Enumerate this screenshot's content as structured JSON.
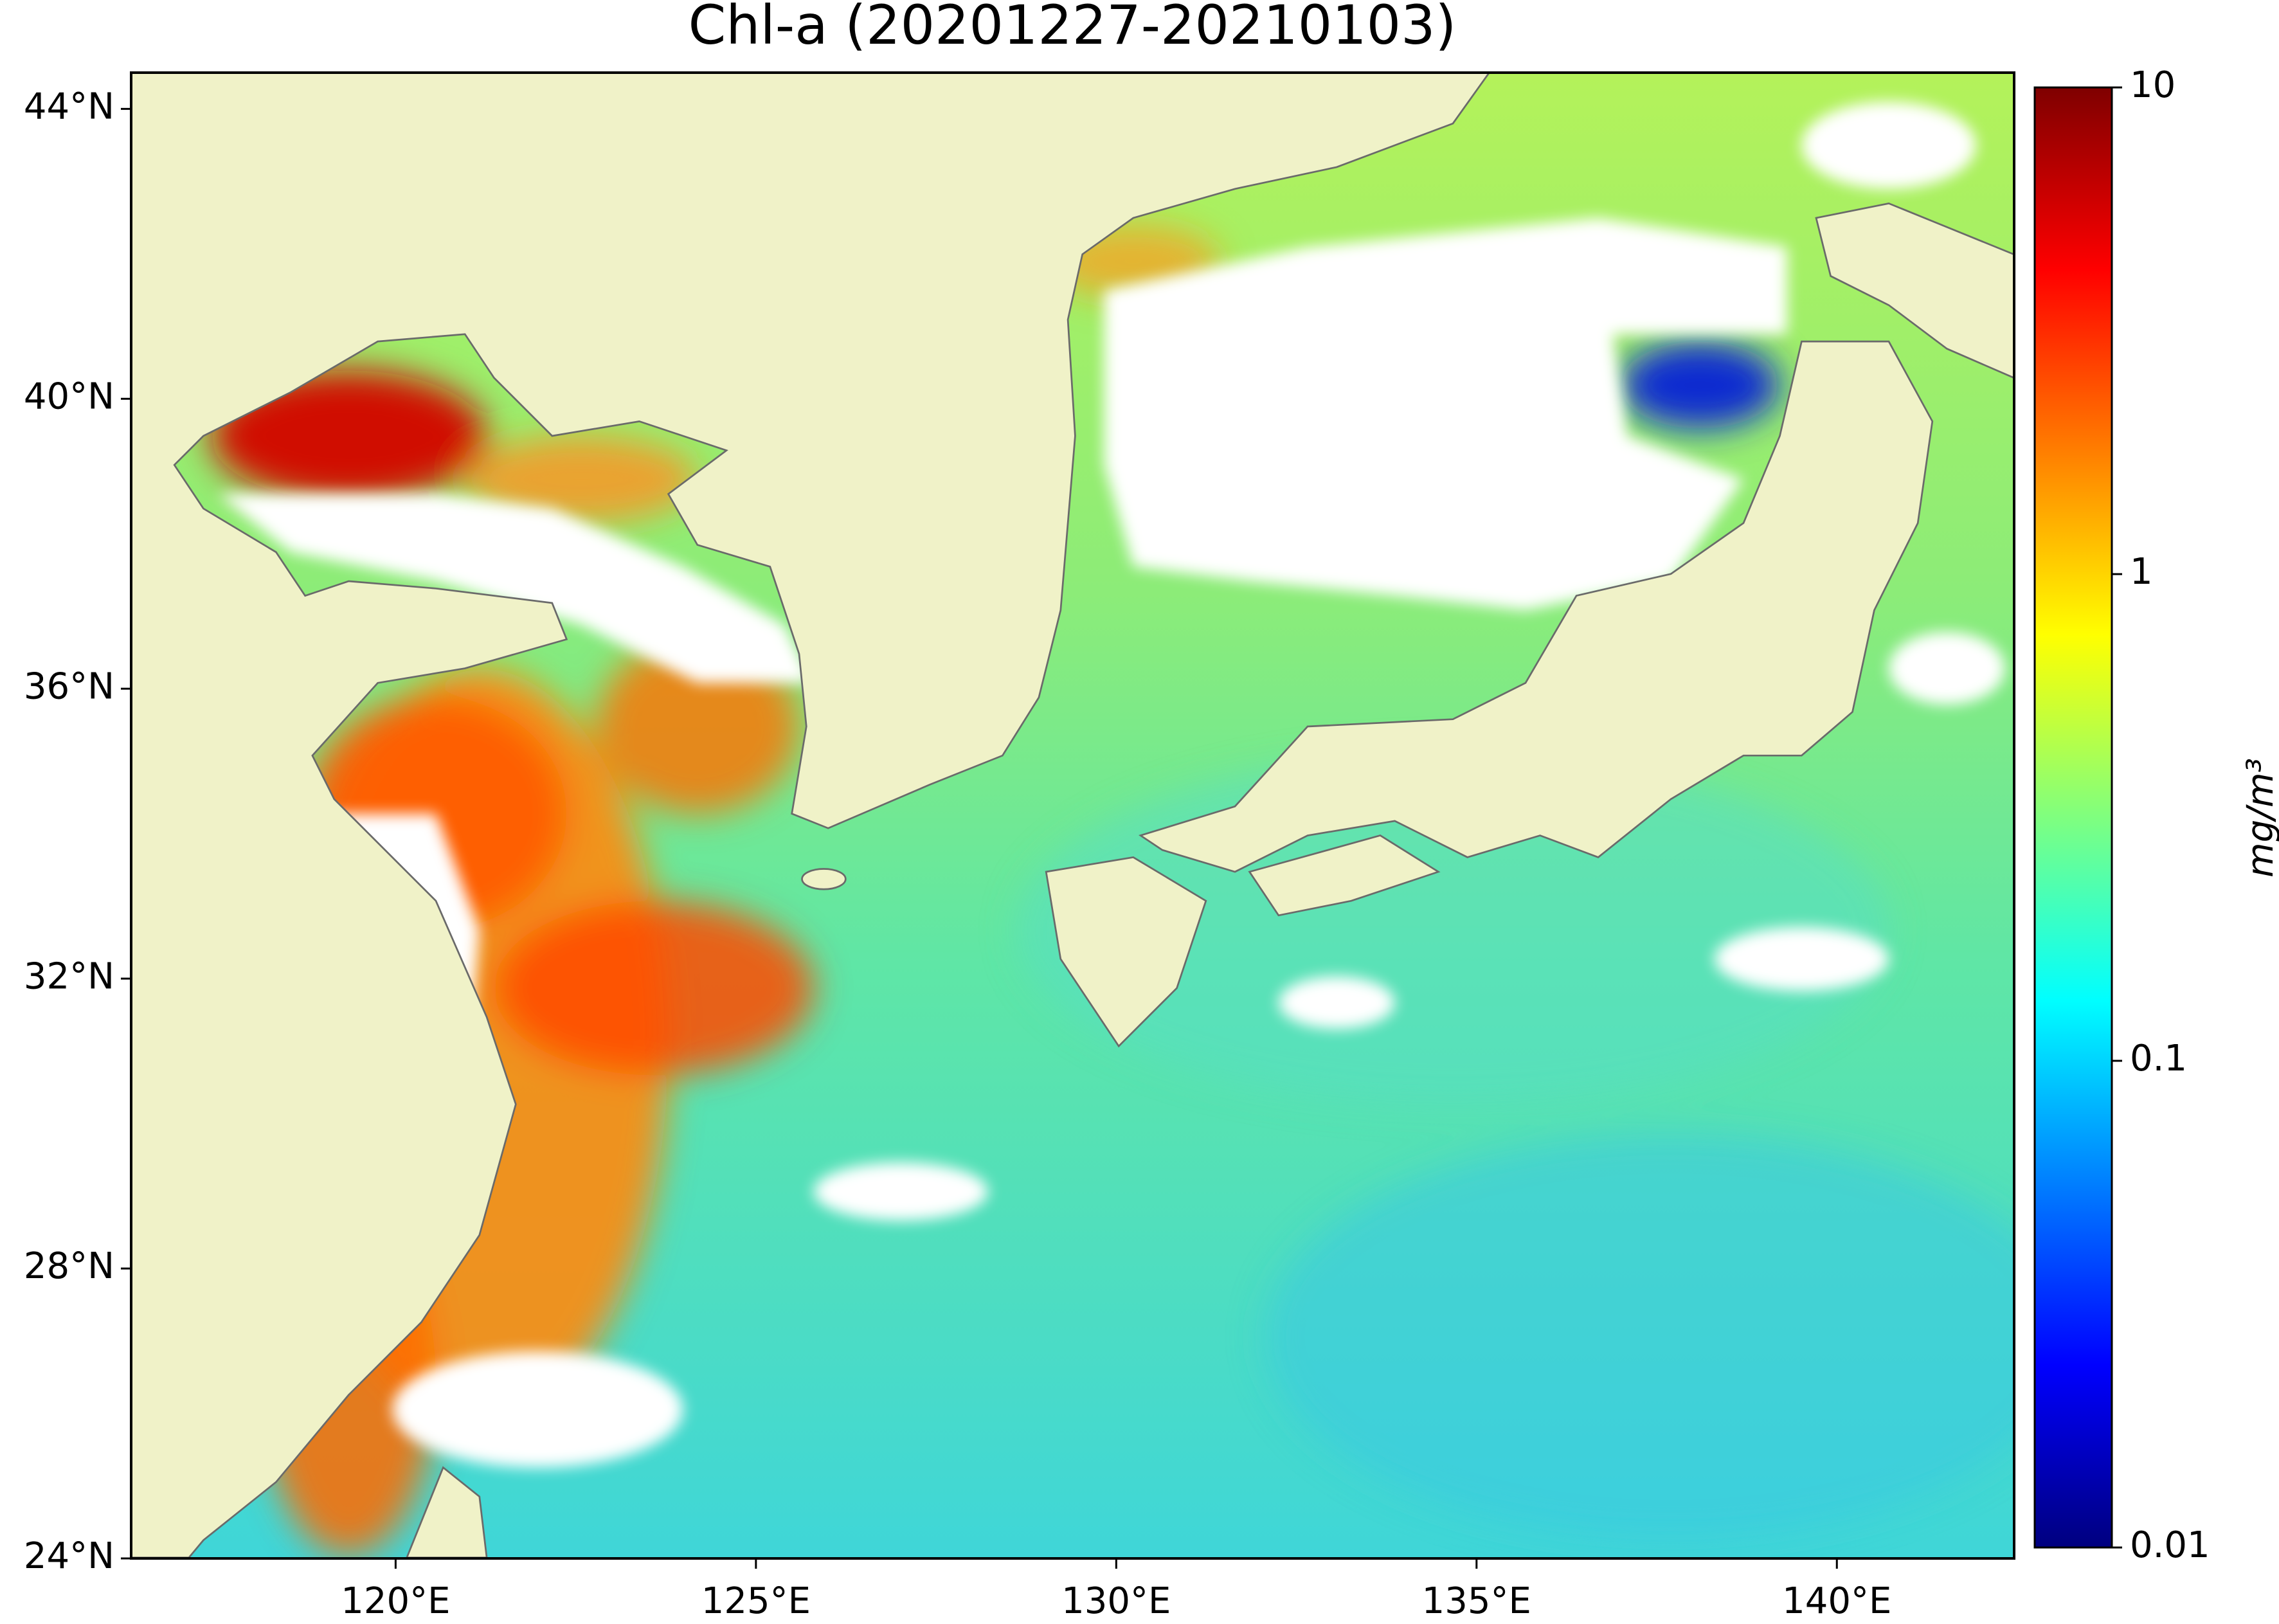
{
  "chart_data": {
    "type": "map",
    "title": "Chl-a (20201227-20210103)",
    "xlim": [
      116.33,
      142.46
    ],
    "ylim": [
      24,
      44.5
    ],
    "xticks": [
      {
        "value": 120,
        "label": "120°E"
      },
      {
        "value": 125,
        "label": "125°E"
      },
      {
        "value": 130,
        "label": "130°E"
      },
      {
        "value": 135,
        "label": "135°E"
      },
      {
        "value": 140,
        "label": "140°E"
      }
    ],
    "yticks": [
      {
        "value": 24,
        "label": "24°N"
      },
      {
        "value": 28,
        "label": "28°N"
      },
      {
        "value": 32,
        "label": "32°N"
      },
      {
        "value": 36,
        "label": "36°N"
      },
      {
        "value": 40,
        "label": "40°N"
      },
      {
        "value": 44,
        "label": "44°N"
      }
    ],
    "colorbar": {
      "label": "mg/m³",
      "log": true,
      "lim": [
        0.01,
        10
      ],
      "ticks": [
        0.01,
        0.1,
        1,
        10
      ],
      "colors": [
        "#00007f",
        "#0000ff",
        "#007fff",
        "#00ffff",
        "#7fff7f",
        "#ffff00",
        "#ff7f00",
        "#ff0000",
        "#7f0000"
      ]
    }
  }
}
